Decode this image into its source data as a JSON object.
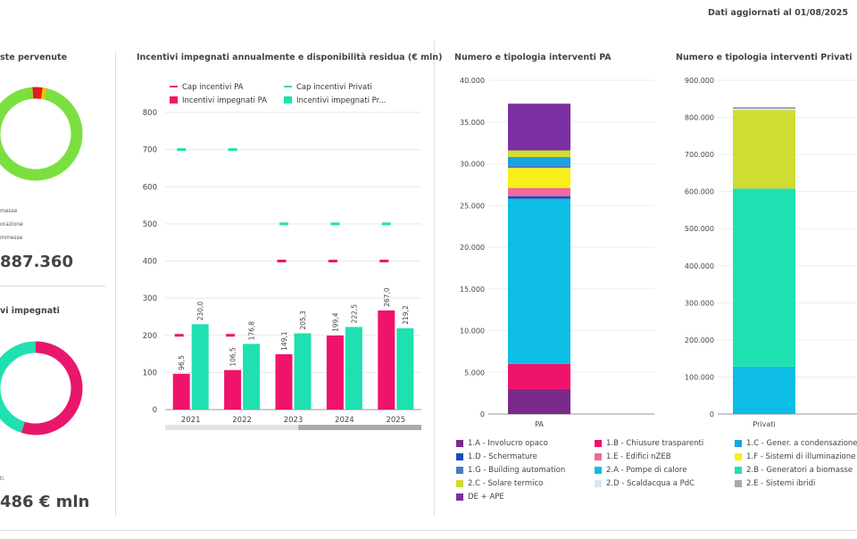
{
  "header": {
    "updated": "Dati aggiornati al 01/08/2025"
  },
  "panel_requests": {
    "title": "ste pervenute",
    "legend": [
      "messe",
      "orazione",
      "mmesse"
    ],
    "total": "887.360",
    "colors": [
      "#7be03f",
      "#e51c1c",
      "#e8c400"
    ],
    "fractions": [
      0.95,
      0.035,
      0.015
    ]
  },
  "panel_funds": {
    "title": "vi impegnati",
    "legend": [
      "ti"
    ],
    "total": "486 € mln",
    "colors": [
      "#e8176c",
      "#20dfb0"
    ],
    "fractions": [
      0.55,
      0.45
    ]
  },
  "chart_data": [
    {
      "type": "bar",
      "title": "Incentivi impegnati annualmente e disponibilità residua (€ mln)",
      "categories": [
        "2021",
        "2022",
        "2023",
        "2024",
        "2025"
      ],
      "ylim": [
        0,
        800
      ],
      "yticks": [
        "0",
        "100",
        "200",
        "300",
        "400",
        "500",
        "600",
        "700",
        "800"
      ],
      "series": [
        {
          "name": "Incentivi impegnati PA",
          "color": "#f0136b",
          "values": [
            96.5,
            106.5,
            149.1,
            199.4,
            267.0
          ],
          "labels": [
            "96,5",
            "106,5",
            "149,1",
            "199,4",
            "267,0"
          ]
        },
        {
          "name": "Incentivi impegnati Pr...",
          "color": "#1fe0b0",
          "values": [
            230.0,
            176.8,
            205.3,
            222.5,
            219.2
          ],
          "labels": [
            "230,0",
            "176,8",
            "205,3",
            "222,5",
            "219,2"
          ]
        }
      ],
      "caps": [
        {
          "name": "Cap incentivi PA",
          "color": "#f0136b",
          "values": [
            200,
            200,
            400,
            400,
            400
          ]
        },
        {
          "name": "Cap incentivi Privati",
          "color": "#1fe0b0",
          "values": [
            700,
            700,
            500,
            500,
            500
          ]
        }
      ]
    },
    {
      "type": "bar",
      "title": "Numero e tipologia interventi PA",
      "categories": [
        "PA"
      ],
      "ylim": [
        0,
        40000
      ],
      "yticks": [
        "0",
        "5.000",
        "10.000",
        "15.000",
        "20.000",
        "25.000",
        "30.000",
        "35.000",
        "40.000"
      ],
      "stack": [
        {
          "name": "1.A - Involucro opaco",
          "value": 3000
        },
        {
          "name": "1.B - Chiusure trasparenti",
          "value": 3000
        },
        {
          "name": "2.A - Pompe di calore",
          "value": 19800
        },
        {
          "name": "1.D - Schermature",
          "value": 300
        },
        {
          "name": "1.E - Edifici nZEB",
          "value": 1000
        },
        {
          "name": "1.F - Sistemi di illuminazione",
          "value": 2400
        },
        {
          "name": "1.G - Building automation",
          "value": 300
        },
        {
          "name": "1.C - Gener. a condensazione",
          "value": 1000
        },
        {
          "name": "2.C - Solare termico",
          "value": 800
        },
        {
          "name": "DE + APE",
          "value": 5600
        }
      ]
    },
    {
      "type": "bar",
      "title": "Numero e tipologia interventi Privati",
      "categories": [
        "Privati"
      ],
      "ylim": [
        0,
        900000
      ],
      "yticks": [
        "0",
        "100.000",
        "200.000",
        "300.000",
        "400.000",
        "500.000",
        "600.000",
        "700.000",
        "800.000",
        "900.000"
      ],
      "stack": [
        {
          "name": "2.A - Pompe di calore",
          "value": 128000
        },
        {
          "name": "2.B - Generatori a biomasse",
          "value": 480000
        },
        {
          "name": "2.C - Solare termico",
          "value": 212000
        },
        {
          "name": "2.D - Scaldacqua a PdC",
          "value": 3000
        },
        {
          "name": "2.E - Sistemi ibridi",
          "value": 5000
        }
      ]
    }
  ],
  "legend_colors": {
    "1.A - Involucro opaco": "#7b2a8a",
    "1.B - Chiusure trasparenti": "#f0136b",
    "1.C - Gener. a condensazione": "#1aa3e0",
    "1.D - Schermature": "#1a4fb8",
    "1.E - Edifici nZEB": "#f068a0",
    "1.F - Sistemi di illuminazione": "#f7f01a",
    "1.G - Building automation": "#4a7cc0",
    "2.A - Pompe di calore": "#0dbde6",
    "2.B - Generatori a biomasse": "#1fe0b0",
    "2.C - Solare termico": "#cfdc32",
    "2.D - Scaldacqua a PdC": "#d8e8f4",
    "2.E - Sistemi ibridi": "#a8a8a8",
    "DE + APE": "#7b2fa0"
  },
  "legend_order": [
    "1.A - Involucro opaco",
    "1.B - Chiusure trasparenti",
    "1.C - Gener. a condensazione",
    "1.D - Schermature",
    "1.E - Edifici nZEB",
    "1.F - Sistemi di illuminazione",
    "1.G - Building automation",
    "2.A - Pompe di calore",
    "2.B - Generatori a biomasse",
    "2.C - Solare termico",
    "2.D - Scaldacqua a PdC",
    "2.E - Sistemi ibridi",
    "DE + APE"
  ]
}
